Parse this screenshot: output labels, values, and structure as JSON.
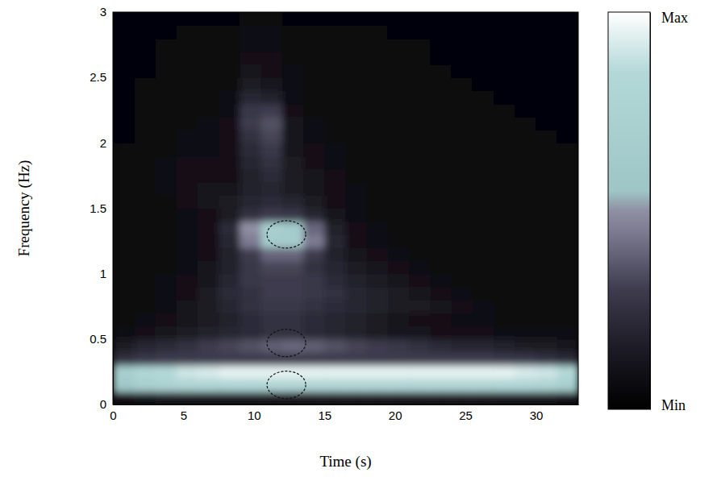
{
  "chart_data": {
    "type": "heatmap",
    "x_label": "Time (s)",
    "y_label": "Frequency (Hz)",
    "xlim": [
      0,
      33
    ],
    "ylim": [
      0,
      3
    ],
    "xticks": [
      0,
      5,
      10,
      15,
      20,
      25,
      30
    ],
    "yticks": [
      0,
      0.5,
      1,
      1.5,
      2,
      2.5,
      3
    ],
    "x_bins": [
      0,
      1.5,
      3,
      4.5,
      6,
      7.5,
      9,
      10.5,
      12,
      13.5,
      15,
      16.5,
      18,
      19.5,
      21,
      22.5,
      24,
      25.5,
      27,
      28.5,
      30,
      31.5,
      33
    ],
    "y_bins": [
      0,
      0.1,
      0.2,
      0.3,
      0.4,
      0.5,
      0.6,
      0.7,
      0.8,
      0.9,
      1,
      1.1,
      1.2,
      1.3,
      1.4,
      1.5,
      1.6,
      1.7,
      1.8,
      1.9,
      2,
      2.1,
      2.2,
      2.3,
      2.4,
      2.5,
      2.6,
      2.7,
      2.8,
      2.9,
      3
    ],
    "cells": [
      [
        0.1,
        0.12,
        0.15,
        0.15,
        0.15,
        0.15,
        0.15,
        0.15,
        0.15,
        0.15,
        0.15,
        0.15,
        0.15,
        0.15,
        0.15,
        0.15,
        0.15,
        0.15,
        0.15,
        0.15,
        0.15,
        0.12
      ],
      [
        0.6,
        0.7,
        0.75,
        0.78,
        0.8,
        0.8,
        0.8,
        0.82,
        0.82,
        0.82,
        0.82,
        0.82,
        0.82,
        0.82,
        0.82,
        0.82,
        0.82,
        0.82,
        0.8,
        0.8,
        0.78,
        0.7
      ],
      [
        0.7,
        0.8,
        0.85,
        0.9,
        0.92,
        0.95,
        0.95,
        0.95,
        0.95,
        0.95,
        0.95,
        0.95,
        0.95,
        0.95,
        0.95,
        0.95,
        0.95,
        0.95,
        0.95,
        0.92,
        0.9,
        0.85
      ],
      [
        0.25,
        0.28,
        0.3,
        0.3,
        0.3,
        0.3,
        0.3,
        0.3,
        0.3,
        0.3,
        0.3,
        0.3,
        0.3,
        0.3,
        0.3,
        0.3,
        0.3,
        0.3,
        0.28,
        0.28,
        0.25,
        0.22
      ],
      [
        0.15,
        0.2,
        0.22,
        0.25,
        0.3,
        0.32,
        0.35,
        0.38,
        0.4,
        0.38,
        0.35,
        0.32,
        0.3,
        0.28,
        0.25,
        0.22,
        0.2,
        0.2,
        0.18,
        0.15,
        0.15,
        0.12
      ],
      [
        0.08,
        0.1,
        0.12,
        0.15,
        0.18,
        0.2,
        0.22,
        0.25,
        0.25,
        0.22,
        0.2,
        0.18,
        0.15,
        0.12,
        0.12,
        0.1,
        0.1,
        0.1,
        0.08,
        0.08,
        0.08,
        0.08
      ],
      [
        0.05,
        0.08,
        0.1,
        0.12,
        0.15,
        0.18,
        0.22,
        0.25,
        0.25,
        0.22,
        0.2,
        0.18,
        0.15,
        0.12,
        0.1,
        0.1,
        0.08,
        0.08,
        0.06,
        0.06,
        0.05,
        0.05
      ],
      [
        0.05,
        0.06,
        0.08,
        0.12,
        0.15,
        0.2,
        0.25,
        0.28,
        0.28,
        0.25,
        0.22,
        0.2,
        0.18,
        0.15,
        0.15,
        0.12,
        0.1,
        0.08,
        0.06,
        0.05,
        0.05,
        0.05
      ],
      [
        0.05,
        0.06,
        0.08,
        0.1,
        0.15,
        0.22,
        0.25,
        0.3,
        0.3,
        0.28,
        0.25,
        0.2,
        0.18,
        0.15,
        0.12,
        0.1,
        0.08,
        0.06,
        0.05,
        0.05,
        0.05,
        0.05
      ],
      [
        0.05,
        0.05,
        0.08,
        0.1,
        0.12,
        0.2,
        0.28,
        0.3,
        0.3,
        0.28,
        0.22,
        0.18,
        0.15,
        0.12,
        0.1,
        0.08,
        0.06,
        0.05,
        0.05,
        0.05,
        0.05,
        0.05
      ],
      [
        0.04,
        0.05,
        0.06,
        0.08,
        0.12,
        0.18,
        0.28,
        0.32,
        0.32,
        0.25,
        0.2,
        0.15,
        0.12,
        0.1,
        0.08,
        0.06,
        0.05,
        0.05,
        0.04,
        0.04,
        0.04,
        0.04
      ],
      [
        0.04,
        0.05,
        0.06,
        0.08,
        0.1,
        0.18,
        0.3,
        0.4,
        0.4,
        0.3,
        0.18,
        0.12,
        0.1,
        0.08,
        0.06,
        0.05,
        0.05,
        0.04,
        0.04,
        0.04,
        0.04,
        0.04
      ],
      [
        0.04,
        0.05,
        0.06,
        0.08,
        0.1,
        0.2,
        0.45,
        0.65,
        0.65,
        0.45,
        0.2,
        0.1,
        0.08,
        0.06,
        0.05,
        0.05,
        0.04,
        0.04,
        0.04,
        0.04,
        0.04,
        0.04
      ],
      [
        0.04,
        0.05,
        0.06,
        0.08,
        0.1,
        0.22,
        0.5,
        0.7,
        0.65,
        0.4,
        0.18,
        0.1,
        0.08,
        0.06,
        0.05,
        0.05,
        0.04,
        0.04,
        0.04,
        0.04,
        0.04,
        0.04
      ],
      [
        0.04,
        0.05,
        0.06,
        0.08,
        0.1,
        0.15,
        0.25,
        0.3,
        0.28,
        0.2,
        0.12,
        0.08,
        0.06,
        0.05,
        0.05,
        0.04,
        0.04,
        0.04,
        0.04,
        0.04,
        0.04,
        0.04
      ],
      [
        0.04,
        0.05,
        0.06,
        0.1,
        0.12,
        0.15,
        0.2,
        0.22,
        0.2,
        0.15,
        0.1,
        0.08,
        0.06,
        0.05,
        0.04,
        0.04,
        0.04,
        0.04,
        0.04,
        0.04,
        0.04,
        0.04
      ],
      [
        0.04,
        0.05,
        0.08,
        0.1,
        0.12,
        0.12,
        0.18,
        0.2,
        0.15,
        0.12,
        0.1,
        0.08,
        0.06,
        0.05,
        0.04,
        0.04,
        0.04,
        0.04,
        0.04,
        0.04,
        0.04,
        0.04
      ],
      [
        0.04,
        0.05,
        0.08,
        0.1,
        0.1,
        0.1,
        0.18,
        0.22,
        0.15,
        0.12,
        0.1,
        0.06,
        0.05,
        0.04,
        0.04,
        0.04,
        0.04,
        0.04,
        0.04,
        0.04,
        0.04,
        0.04
      ],
      [
        0.04,
        0.05,
        0.08,
        0.1,
        0.1,
        0.1,
        0.2,
        0.25,
        0.15,
        0.1,
        0.08,
        0.06,
        0.05,
        0.04,
        0.04,
        0.04,
        0.04,
        0.04,
        0.04,
        0.04,
        0.04,
        0.04
      ],
      [
        0.04,
        0.05,
        0.06,
        0.08,
        0.08,
        0.1,
        0.22,
        0.28,
        0.12,
        0.1,
        0.08,
        0.05,
        0.04,
        0.04,
        0.04,
        0.04,
        0.04,
        0.04,
        0.04,
        0.04,
        0.04,
        0.04
      ],
      [
        0.03,
        0.04,
        0.06,
        0.08,
        0.08,
        0.1,
        0.25,
        0.32,
        0.12,
        0.08,
        0.06,
        0.05,
        0.04,
        0.04,
        0.04,
        0.04,
        0.04,
        0.04,
        0.04,
        0.04,
        0.04,
        0.03
      ],
      [
        0.03,
        0.04,
        0.05,
        0.06,
        0.08,
        0.1,
        0.3,
        0.35,
        0.12,
        0.08,
        0.06,
        0.05,
        0.04,
        0.04,
        0.04,
        0.04,
        0.04,
        0.04,
        0.04,
        0.04,
        0.03,
        0.03
      ],
      [
        0.03,
        0.04,
        0.05,
        0.06,
        0.06,
        0.08,
        0.28,
        0.3,
        0.1,
        0.06,
        0.05,
        0.04,
        0.04,
        0.04,
        0.04,
        0.04,
        0.04,
        0.04,
        0.04,
        0.03,
        0.03,
        0.03
      ],
      [
        0.03,
        0.04,
        0.04,
        0.05,
        0.05,
        0.08,
        0.2,
        0.18,
        0.08,
        0.06,
        0.05,
        0.04,
        0.04,
        0.04,
        0.04,
        0.04,
        0.04,
        0.04,
        0.03,
        0.03,
        0.03,
        0.03
      ],
      [
        0.03,
        0.04,
        0.04,
        0.05,
        0.05,
        0.06,
        0.15,
        0.12,
        0.08,
        0.05,
        0.04,
        0.04,
        0.04,
        0.04,
        0.04,
        0.04,
        0.04,
        0.03,
        0.03,
        0.03,
        0.03,
        0.03
      ],
      [
        0.03,
        0.03,
        0.04,
        0.04,
        0.05,
        0.06,
        0.12,
        0.1,
        0.08,
        0.05,
        0.04,
        0.04,
        0.04,
        0.04,
        0.04,
        0.04,
        0.03,
        0.03,
        0.03,
        0.03,
        0.03,
        0.03
      ],
      [
        0.03,
        0.03,
        0.04,
        0.04,
        0.05,
        0.06,
        0.1,
        0.1,
        0.06,
        0.05,
        0.04,
        0.04,
        0.04,
        0.04,
        0.04,
        0.03,
        0.03,
        0.03,
        0.03,
        0.03,
        0.03,
        0.03
      ],
      [
        0.03,
        0.03,
        0.04,
        0.04,
        0.05,
        0.06,
        0.08,
        0.08,
        0.06,
        0.05,
        0.04,
        0.04,
        0.04,
        0.04,
        0.04,
        0.03,
        0.03,
        0.03,
        0.03,
        0.03,
        0.03,
        0.03
      ],
      [
        0.03,
        0.03,
        0.03,
        0.04,
        0.04,
        0.05,
        0.08,
        0.08,
        0.05,
        0.04,
        0.04,
        0.04,
        0.04,
        0.03,
        0.03,
        0.03,
        0.03,
        0.03,
        0.03,
        0.03,
        0.03,
        0.03
      ],
      [
        0.03,
        0.03,
        0.03,
        0.03,
        0.03,
        0.03,
        0.06,
        0.06,
        0.03,
        0.03,
        0.03,
        0.03,
        0.03,
        0.03,
        0.03,
        0.03,
        0.03,
        0.03,
        0.03,
        0.03,
        0.03,
        0.03
      ]
    ],
    "colorbar": {
      "range": [
        0,
        1
      ],
      "ticks": [
        {
          "value": 0,
          "label": "Min"
        },
        {
          "value": 1,
          "label": "Max"
        }
      ]
    },
    "regions": [
      {
        "x": 12.3,
        "y": 1.3
      },
      {
        "x": 12.3,
        "y": 0.47
      },
      {
        "x": 12.3,
        "y": 0.15
      }
    ]
  }
}
